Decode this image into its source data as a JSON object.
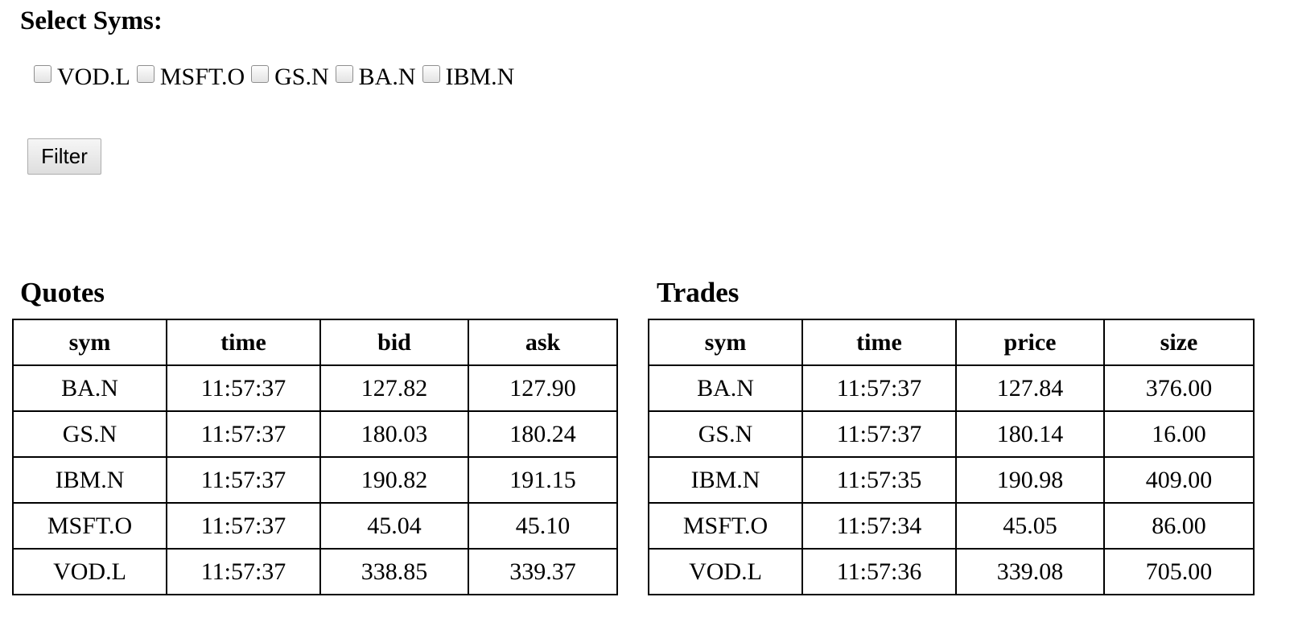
{
  "filter_panel": {
    "title": "Select Syms:",
    "symbols": [
      {
        "label": "VOD.L",
        "checked": false
      },
      {
        "label": "MSFT.O",
        "checked": false
      },
      {
        "label": "GS.N",
        "checked": false
      },
      {
        "label": "BA.N",
        "checked": false
      },
      {
        "label": "IBM.N",
        "checked": false
      }
    ],
    "filter_button_label": "Filter"
  },
  "quotes": {
    "title": "Quotes",
    "columns": [
      "sym",
      "time",
      "bid",
      "ask"
    ],
    "rows": [
      [
        "BA.N",
        "11:57:37",
        "127.82",
        "127.90"
      ],
      [
        "GS.N",
        "11:57:37",
        "180.03",
        "180.24"
      ],
      [
        "IBM.N",
        "11:57:37",
        "190.82",
        "191.15"
      ],
      [
        "MSFT.O",
        "11:57:37",
        "45.04",
        "45.10"
      ],
      [
        "VOD.L",
        "11:57:37",
        "338.85",
        "339.37"
      ]
    ]
  },
  "trades": {
    "title": "Trades",
    "columns": [
      "sym",
      "time",
      "price",
      "size"
    ],
    "rows": [
      [
        "BA.N",
        "11:57:37",
        "127.84",
        "376.00"
      ],
      [
        "GS.N",
        "11:57:37",
        "180.14",
        "16.00"
      ],
      [
        "IBM.N",
        "11:57:35",
        "190.98",
        "409.00"
      ],
      [
        "MSFT.O",
        "11:57:34",
        "45.05",
        "86.00"
      ],
      [
        "VOD.L",
        "11:57:36",
        "339.08",
        "705.00"
      ]
    ]
  }
}
